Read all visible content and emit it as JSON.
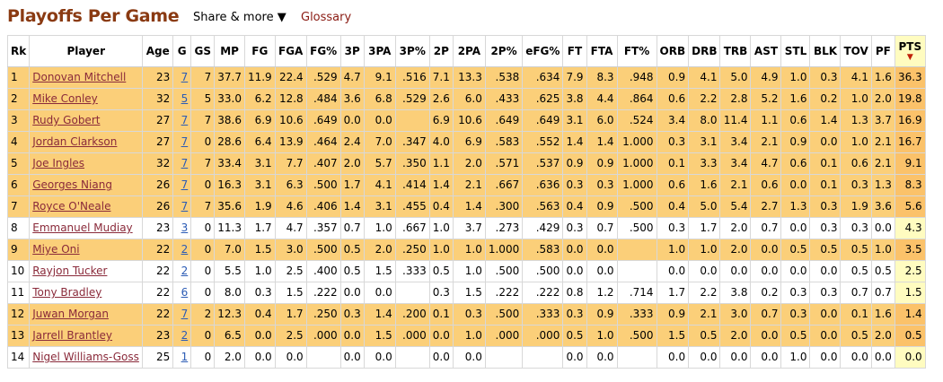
{
  "header": {
    "title": "Playoffs Per Game",
    "share_label": "Share & more ▼",
    "glossary_label": "Glossary"
  },
  "table": {
    "columns": [
      "Rk",
      "Player",
      "Age",
      "G",
      "GS",
      "MP",
      "FG",
      "FGA",
      "FG%",
      "3P",
      "3PA",
      "3P%",
      "2P",
      "2PA",
      "2P%",
      "eFG%",
      "FT",
      "FTA",
      "FT%",
      "ORB",
      "DRB",
      "TRB",
      "AST",
      "STL",
      "BLK",
      "TOV",
      "PF",
      "PTS"
    ],
    "sort_arrow": "▼",
    "rows": [
      {
        "cells": [
          "1",
          "Donovan Mitchell",
          "23",
          "7",
          "7",
          "37.7",
          "11.9",
          "22.4",
          ".529",
          "4.7",
          "9.1",
          ".516",
          "7.1",
          "13.3",
          ".538",
          ".634",
          "7.9",
          "8.3",
          ".948",
          "0.9",
          "4.1",
          "5.0",
          "4.9",
          "1.0",
          "0.3",
          "4.1",
          "1.6",
          "36.3"
        ],
        "highlight": true
      },
      {
        "cells": [
          "2",
          "Mike Conley",
          "32",
          "5",
          "5",
          "33.0",
          "6.2",
          "12.8",
          ".484",
          "3.6",
          "6.8",
          ".529",
          "2.6",
          "6.0",
          ".433",
          ".625",
          "3.8",
          "4.4",
          ".864",
          "0.6",
          "2.2",
          "2.8",
          "5.2",
          "1.6",
          "0.2",
          "1.0",
          "2.0",
          "19.8"
        ],
        "highlight": true
      },
      {
        "cells": [
          "3",
          "Rudy Gobert",
          "27",
          "7",
          "7",
          "38.6",
          "6.9",
          "10.6",
          ".649",
          "0.0",
          "0.0",
          "",
          "6.9",
          "10.6",
          ".649",
          ".649",
          "3.1",
          "6.0",
          ".524",
          "3.4",
          "8.0",
          "11.4",
          "1.1",
          "0.6",
          "1.4",
          "1.3",
          "3.7",
          "16.9"
        ],
        "highlight": true
      },
      {
        "cells": [
          "4",
          "Jordan Clarkson",
          "27",
          "7",
          "0",
          "28.6",
          "6.4",
          "13.9",
          ".464",
          "2.4",
          "7.0",
          ".347",
          "4.0",
          "6.9",
          ".583",
          ".552",
          "1.4",
          "1.4",
          "1.000",
          "0.3",
          "3.1",
          "3.4",
          "2.1",
          "0.9",
          "0.0",
          "1.0",
          "2.1",
          "16.7"
        ],
        "highlight": true
      },
      {
        "cells": [
          "5",
          "Joe Ingles",
          "32",
          "7",
          "7",
          "33.4",
          "3.1",
          "7.7",
          ".407",
          "2.0",
          "5.7",
          ".350",
          "1.1",
          "2.0",
          ".571",
          ".537",
          "0.9",
          "0.9",
          "1.000",
          "0.1",
          "3.3",
          "3.4",
          "4.7",
          "0.6",
          "0.1",
          "0.6",
          "2.1",
          "9.1"
        ],
        "highlight": true
      },
      {
        "cells": [
          "6",
          "Georges Niang",
          "26",
          "7",
          "0",
          "16.3",
          "3.1",
          "6.3",
          ".500",
          "1.7",
          "4.1",
          ".414",
          "1.4",
          "2.1",
          ".667",
          ".636",
          "0.3",
          "0.3",
          "1.000",
          "0.6",
          "1.6",
          "2.1",
          "0.6",
          "0.0",
          "0.1",
          "0.3",
          "1.3",
          "8.3"
        ],
        "highlight": true
      },
      {
        "cells": [
          "7",
          "Royce O'Neale",
          "26",
          "7",
          "7",
          "35.6",
          "1.9",
          "4.6",
          ".406",
          "1.4",
          "3.1",
          ".455",
          "0.4",
          "1.4",
          ".300",
          ".563",
          "0.4",
          "0.9",
          ".500",
          "0.4",
          "5.0",
          "5.4",
          "2.7",
          "1.3",
          "0.3",
          "1.9",
          "3.6",
          "5.6"
        ],
        "highlight": true
      },
      {
        "cells": [
          "8",
          "Emmanuel Mudiay",
          "23",
          "3",
          "0",
          "11.3",
          "1.7",
          "4.7",
          ".357",
          "0.7",
          "1.0",
          ".667",
          "1.0",
          "3.7",
          ".273",
          ".429",
          "0.3",
          "0.7",
          ".500",
          "0.3",
          "1.7",
          "2.0",
          "0.7",
          "0.0",
          "0.3",
          "0.3",
          "0.0",
          "4.3"
        ],
        "highlight": false
      },
      {
        "cells": [
          "9",
          "Miye Oni",
          "22",
          "2",
          "0",
          "7.0",
          "1.5",
          "3.0",
          ".500",
          "0.5",
          "2.0",
          ".250",
          "1.0",
          "1.0",
          "1.000",
          ".583",
          "0.0",
          "0.0",
          "",
          "1.0",
          "1.0",
          "2.0",
          "0.0",
          "0.5",
          "0.5",
          "0.5",
          "1.0",
          "3.5"
        ],
        "highlight": true
      },
      {
        "cells": [
          "10",
          "Rayjon Tucker",
          "22",
          "2",
          "0",
          "5.5",
          "1.0",
          "2.5",
          ".400",
          "0.5",
          "1.5",
          ".333",
          "0.5",
          "1.0",
          ".500",
          ".500",
          "0.0",
          "0.0",
          "",
          "0.0",
          "0.0",
          "0.0",
          "0.0",
          "0.0",
          "0.0",
          "0.5",
          "0.5",
          "2.5"
        ],
        "highlight": false
      },
      {
        "cells": [
          "11",
          "Tony Bradley",
          "22",
          "6",
          "0",
          "8.0",
          "0.3",
          "1.5",
          ".222",
          "0.0",
          "0.0",
          "",
          "0.3",
          "1.5",
          ".222",
          ".222",
          "0.8",
          "1.2",
          ".714",
          "1.7",
          "2.2",
          "3.8",
          "0.2",
          "0.3",
          "0.3",
          "0.7",
          "0.7",
          "1.5"
        ],
        "highlight": false
      },
      {
        "cells": [
          "12",
          "Juwan Morgan",
          "22",
          "7",
          "2",
          "12.3",
          "0.4",
          "1.7",
          ".250",
          "0.3",
          "1.4",
          ".200",
          "0.1",
          "0.3",
          ".500",
          ".333",
          "0.3",
          "0.9",
          ".333",
          "0.9",
          "2.1",
          "3.0",
          "0.7",
          "0.3",
          "0.0",
          "0.1",
          "1.6",
          "1.4"
        ],
        "highlight": true
      },
      {
        "cells": [
          "13",
          "Jarrell Brantley",
          "23",
          "2",
          "0",
          "6.5",
          "0.0",
          "2.5",
          ".000",
          "0.0",
          "1.5",
          ".000",
          "0.0",
          "1.0",
          ".000",
          ".000",
          "0.5",
          "1.0",
          ".500",
          "1.5",
          "0.5",
          "2.0",
          "0.0",
          "0.5",
          "0.0",
          "0.5",
          "2.0",
          "0.5"
        ],
        "highlight": true
      },
      {
        "cells": [
          "14",
          "Nigel Williams-Goss",
          "25",
          "1",
          "0",
          "2.0",
          "0.0",
          "0.0",
          "",
          "0.0",
          "0.0",
          "",
          "0.0",
          "0.0",
          "",
          "",
          "0.0",
          "0.0",
          "",
          "0.0",
          "0.0",
          "0.0",
          "0.0",
          "1.0",
          "0.0",
          "0.0",
          "0.0",
          "0.0"
        ],
        "highlight": false
      }
    ]
  },
  "colors": {
    "title": "#8a3a12",
    "highlight_row": "#fbcf79",
    "pts_highlight": "#fbc26a",
    "sorted_column": "#fffcc0",
    "player_link": "#8a2a3a",
    "games_link": "#2b5bb5"
  }
}
